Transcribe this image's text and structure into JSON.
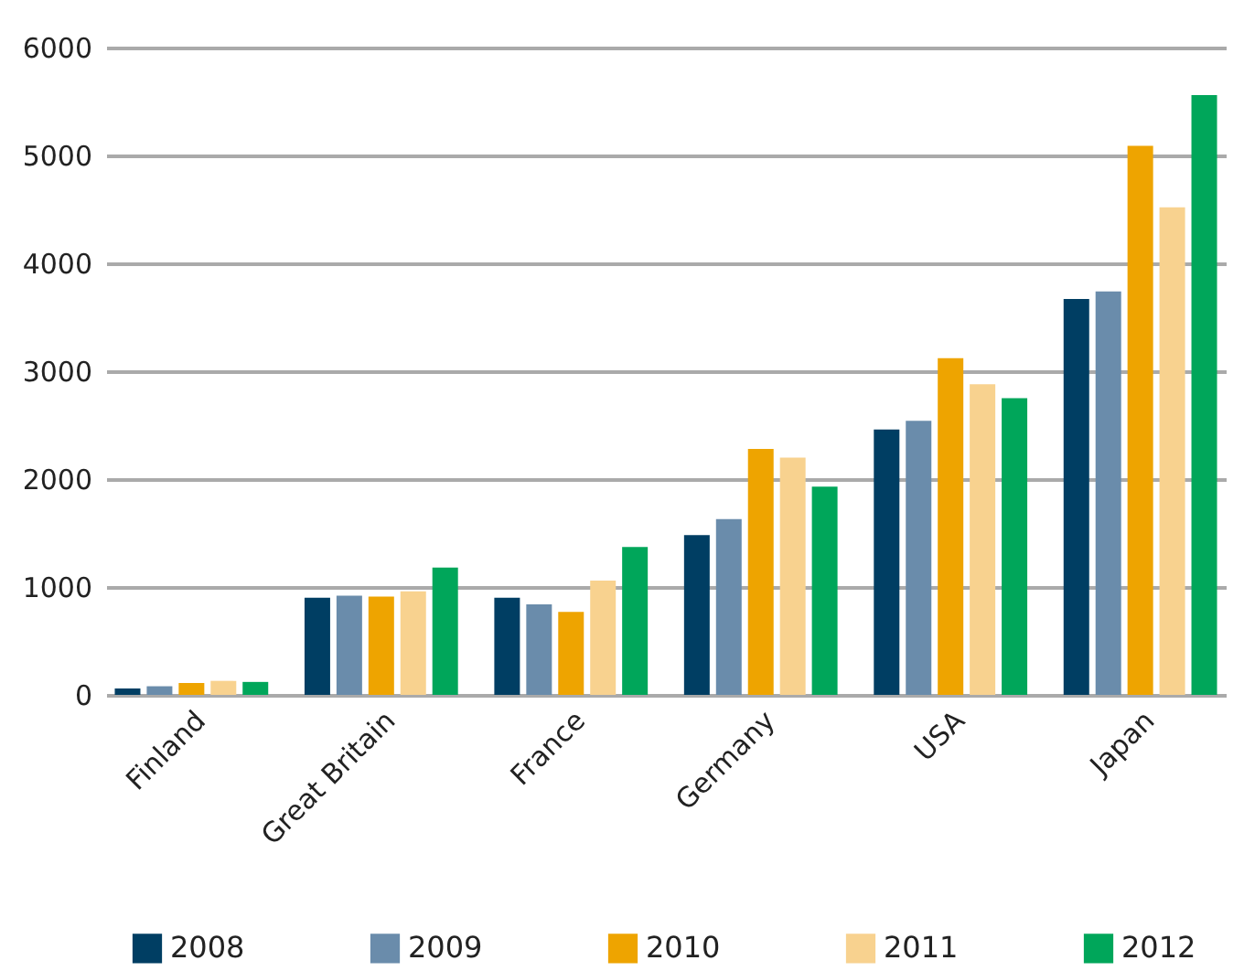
{
  "chart_data": {
    "type": "bar",
    "categories": [
      "Finland",
      "Great Britain",
      "France",
      "Germany",
      "USA",
      "Japan"
    ],
    "series": [
      {
        "name": "2008",
        "color": "#003e63",
        "values": [
          60,
          900,
          900,
          1480,
          2460,
          3670
        ]
      },
      {
        "name": "2009",
        "color": "#6a8cab",
        "values": [
          80,
          920,
          840,
          1630,
          2540,
          3740
        ]
      },
      {
        "name": "2010",
        "color": "#eea400",
        "values": [
          110,
          910,
          770,
          2280,
          3120,
          5090
        ]
      },
      {
        "name": "2011",
        "color": "#f8d28f",
        "values": [
          130,
          960,
          1060,
          2200,
          2880,
          4520
        ]
      },
      {
        "name": "2012",
        "color": "#00a65a",
        "values": [
          120,
          1180,
          1370,
          1930,
          2750,
          5560
        ]
      }
    ],
    "ylim": [
      0,
      6000
    ],
    "yticks": [
      0,
      1000,
      2000,
      3000,
      4000,
      5000,
      6000
    ],
    "grid": "y",
    "legend": "bottom"
  }
}
